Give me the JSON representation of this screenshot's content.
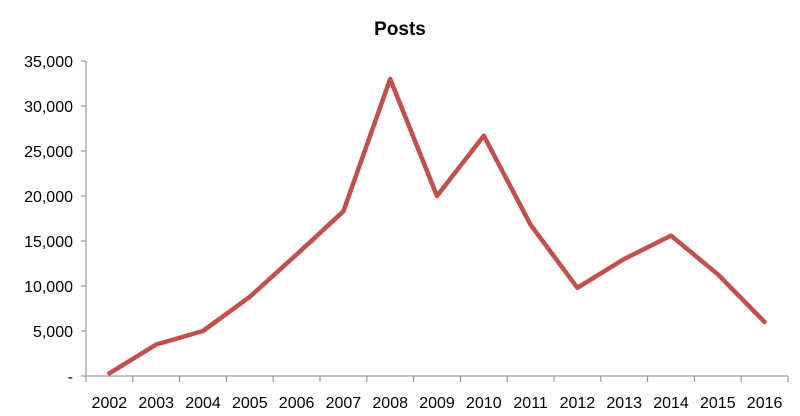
{
  "chart_data": {
    "type": "line",
    "title": "Posts",
    "xlabel": "",
    "ylabel": "",
    "categories": [
      "2002",
      "2003",
      "2004",
      "2005",
      "2006",
      "2007",
      "2008",
      "2009",
      "2010",
      "2011",
      "2012",
      "2013",
      "2014",
      "2015",
      "2016"
    ],
    "series": [
      {
        "color": "#c0504d",
        "values": [
          300,
          3500,
          5000,
          8800,
          13500,
          18300,
          33000,
          20000,
          26700,
          16800,
          9800,
          13000,
          15600,
          11300,
          6000
        ]
      }
    ],
    "ylim": [
      0,
      35000
    ],
    "yticks": [
      0,
      5000,
      10000,
      15000,
      20000,
      25000,
      30000,
      35000
    ],
    "ytick_labels": [
      "-",
      "5,000",
      "10,000",
      "15,000",
      "20,000",
      "25,000",
      "30,000",
      "35,000"
    ],
    "grid": false,
    "legend": "none"
  }
}
